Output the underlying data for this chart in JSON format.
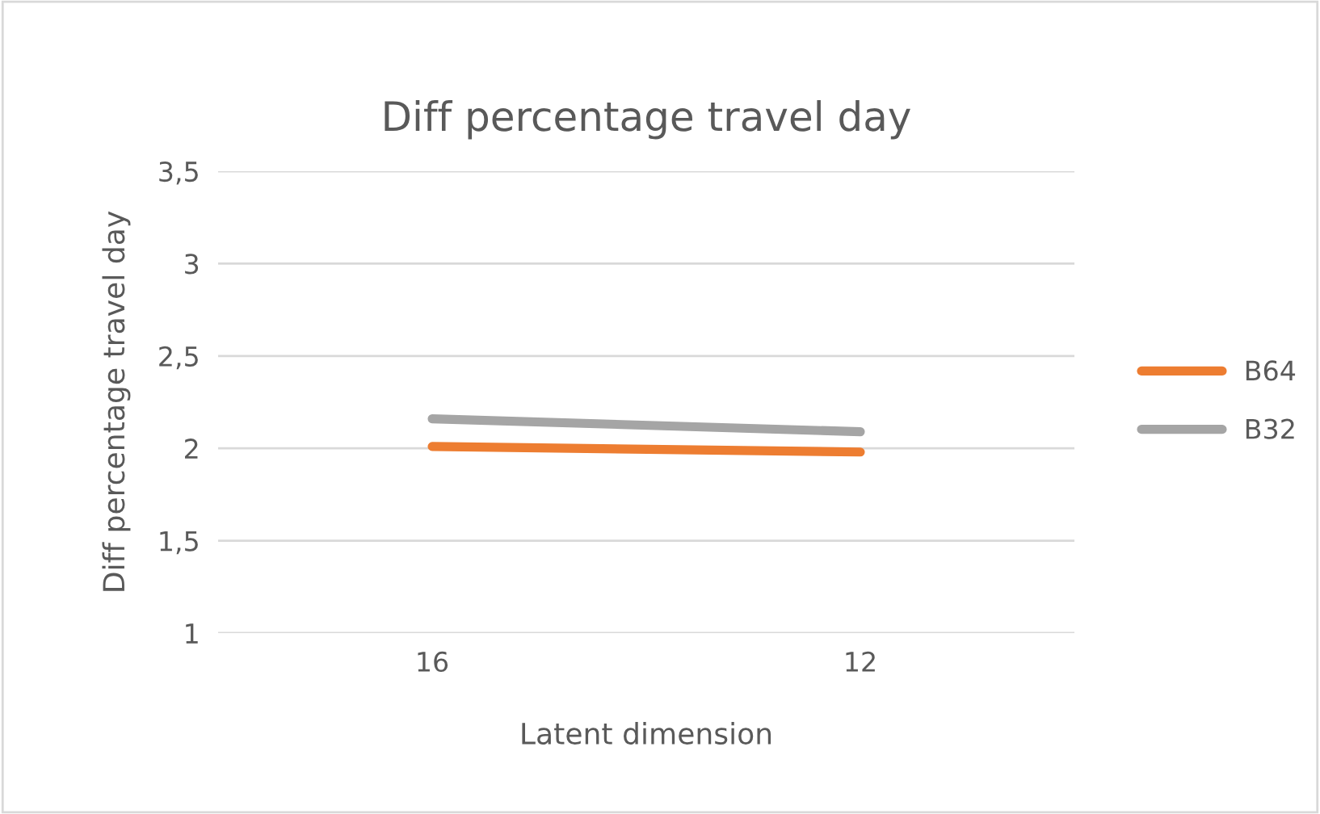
{
  "chart_data": {
    "type": "line",
    "title": "Diff percentage travel day",
    "xlabel": "Latent dimension",
    "ylabel": "Diff percentage travel day",
    "categories": [
      "16",
      "12"
    ],
    "series": [
      {
        "name": "B64",
        "color": "#ed7d31",
        "values": [
          2.01,
          1.98
        ]
      },
      {
        "name": "B32",
        "color": "#a5a5a5",
        "values": [
          2.16,
          2.09
        ]
      }
    ],
    "ylim": [
      1,
      3.5
    ],
    "yticks": [
      1,
      {
        "value": 1.5,
        "label": "1,5"
      },
      2,
      {
        "value": 2.5,
        "label": "2,5"
      },
      3,
      {
        "value": 3.5,
        "label": "3,5"
      }
    ],
    "grid": "y",
    "legend": "right",
    "marker": "none",
    "line_style": "solid"
  }
}
